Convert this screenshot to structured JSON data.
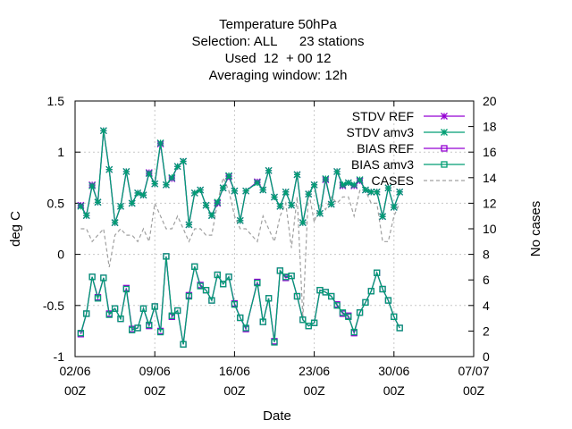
{
  "colors": {
    "stdv_ref": "#9400d3",
    "stdv_amv3": "#009e73",
    "bias_ref": "#9400d3",
    "bias_amv3": "#009e73",
    "cases": "#a0a0a0",
    "grid": "#c8c8c8"
  },
  "chart_data": {
    "type": "line",
    "title_lines": [
      "Temperature 50hPa",
      "Selection: ALL      23 stations",
      "Used  12  + 00 12",
      "Averaging window: 12h"
    ],
    "xlabel": "Date",
    "ylabel": "deg C",
    "y2label": "No cases",
    "xlim": [
      0,
      35
    ],
    "ylim": [
      -1,
      1.5
    ],
    "y2lim": [
      0,
      20
    ],
    "x_ticks": [
      {
        "x": 0,
        "line1": "02/06",
        "line2": "00Z"
      },
      {
        "x": 7,
        "line1": "09/06",
        "line2": "00Z"
      },
      {
        "x": 14,
        "line1": "16/06",
        "line2": "00Z"
      },
      {
        "x": 21,
        "line1": "23/06",
        "line2": "00Z"
      },
      {
        "x": 28,
        "line1": "30/06",
        "line2": "00Z"
      },
      {
        "x": 35,
        "line1": "07/07",
        "line2": "00Z"
      }
    ],
    "y_ticks": [
      {
        "v": -1,
        "label": "-1"
      },
      {
        "v": -0.5,
        "label": "-0.5"
      },
      {
        "v": 0,
        "label": "0"
      },
      {
        "v": 0.5,
        "label": "0.5"
      },
      {
        "v": 1,
        "label": "1"
      },
      {
        "v": 1.5,
        "label": "1.5"
      }
    ],
    "y2_ticks": [
      {
        "v": 0,
        "label": "0"
      },
      {
        "v": 2,
        "label": "2"
      },
      {
        "v": 4,
        "label": "4"
      },
      {
        "v": 6,
        "label": "6"
      },
      {
        "v": 8,
        "label": "8"
      },
      {
        "v": 10,
        "label": "10"
      },
      {
        "v": 12,
        "label": "12"
      },
      {
        "v": 14,
        "label": "14"
      },
      {
        "v": 16,
        "label": "16"
      },
      {
        "v": 18,
        "label": "18"
      },
      {
        "v": 20,
        "label": "20"
      }
    ],
    "grid": true,
    "legend_position": "top-right",
    "x": [
      0.5,
      1,
      1.5,
      2,
      2.5,
      3,
      3.5,
      4,
      4.5,
      5,
      5.5,
      6,
      6.5,
      7,
      7.5,
      8,
      8.5,
      9,
      9.5,
      10,
      10.5,
      11,
      11.5,
      12,
      12.5,
      13,
      13.5,
      14,
      14.5,
      15,
      16,
      16.5,
      17,
      17.5,
      18,
      18.5,
      19,
      19.5,
      20,
      20.5,
      21,
      21.5,
      22,
      22.5,
      23,
      23.5,
      24,
      24.5,
      25,
      25.5,
      26,
      26.5,
      27,
      27.5,
      28,
      28.5
    ],
    "series": [
      {
        "name": "STDV REF",
        "axis": "y",
        "marker": "star",
        "values": [
          0.48,
          0.38,
          0.68,
          0.51,
          1.21,
          0.83,
          0.31,
          0.47,
          0.81,
          0.5,
          0.6,
          0.58,
          0.8,
          0.69,
          1.08,
          0.68,
          0.74,
          0.86,
          0.91,
          0.29,
          0.6,
          0.63,
          0.48,
          0.38,
          0.5,
          0.65,
          0.76,
          0.62,
          0.33,
          0.62,
          0.71,
          0.63,
          0.82,
          0.56,
          0.47,
          0.61,
          0.48,
          0.78,
          0.31,
          0.59,
          0.68,
          0.4,
          0.73,
          0.49,
          0.81,
          0.67,
          0.7,
          0.67,
          0.72,
          0.63,
          0.61,
          0.61,
          0.37,
          0.65,
          0.46,
          0.61
        ]
      },
      {
        "name": "STDV amv3",
        "axis": "y",
        "marker": "star",
        "values": [
          0.47,
          0.38,
          0.67,
          0.51,
          1.21,
          0.83,
          0.31,
          0.47,
          0.81,
          0.5,
          0.6,
          0.58,
          0.79,
          0.69,
          1.09,
          0.68,
          0.75,
          0.86,
          0.91,
          0.29,
          0.6,
          0.63,
          0.48,
          0.38,
          0.51,
          0.65,
          0.77,
          0.62,
          0.33,
          0.62,
          0.7,
          0.63,
          0.82,
          0.56,
          0.47,
          0.61,
          0.48,
          0.78,
          0.31,
          0.59,
          0.68,
          0.4,
          0.74,
          0.49,
          0.81,
          0.68,
          0.7,
          0.68,
          0.73,
          0.63,
          0.61,
          0.61,
          0.37,
          0.65,
          0.46,
          0.61
        ]
      },
      {
        "name": "BIAS REF",
        "axis": "y",
        "marker": "square",
        "values": [
          -0.78,
          -0.58,
          -0.22,
          -0.42,
          -0.23,
          -0.58,
          -0.53,
          -0.63,
          -0.33,
          -0.73,
          -0.72,
          -0.53,
          -0.7,
          -0.51,
          -0.75,
          -0.02,
          -0.61,
          -0.55,
          -0.88,
          -0.4,
          -0.12,
          -0.3,
          -0.35,
          -0.45,
          -0.2,
          -0.29,
          -0.22,
          -0.48,
          -0.62,
          -0.73,
          -0.27,
          -0.66,
          -0.43,
          -0.85,
          -0.16,
          -0.23,
          -0.21,
          -0.41,
          -0.64,
          -0.7,
          -0.67,
          -0.35,
          -0.37,
          -0.41,
          -0.49,
          -0.58,
          -0.6,
          -0.77,
          -0.57,
          -0.47,
          -0.36,
          -0.18,
          -0.34,
          -0.45,
          -0.61,
          -0.72
        ]
      },
      {
        "name": "BIAS amv3",
        "axis": "y",
        "marker": "square",
        "values": [
          -0.77,
          -0.58,
          -0.22,
          -0.43,
          -0.23,
          -0.59,
          -0.53,
          -0.63,
          -0.34,
          -0.74,
          -0.72,
          -0.53,
          -0.69,
          -0.51,
          -0.76,
          -0.02,
          -0.6,
          -0.55,
          -0.88,
          -0.41,
          -0.12,
          -0.31,
          -0.35,
          -0.45,
          -0.2,
          -0.29,
          -0.22,
          -0.49,
          -0.62,
          -0.72,
          -0.28,
          -0.66,
          -0.43,
          -0.86,
          -0.16,
          -0.22,
          -0.21,
          -0.41,
          -0.64,
          -0.7,
          -0.67,
          -0.35,
          -0.37,
          -0.41,
          -0.5,
          -0.57,
          -0.61,
          -0.76,
          -0.57,
          -0.47,
          -0.36,
          -0.18,
          -0.34,
          -0.45,
          -0.61,
          -0.72
        ]
      },
      {
        "name": "CASES",
        "axis": "y2",
        "marker": "none",
        "values": [
          10,
          10,
          9,
          9.5,
          10,
          7,
          9.5,
          10,
          9.5,
          9.5,
          9,
          10,
          9,
          12,
          11,
          10,
          10,
          11,
          10,
          9,
          10,
          10,
          9.5,
          9.5,
          12,
          14,
          13,
          11,
          10,
          10,
          9,
          11,
          10,
          9,
          11,
          12,
          8.5,
          12.5,
          3,
          13,
          10.5,
          12,
          11.5,
          12.5,
          12,
          12.5,
          12.5,
          11,
          13,
          13,
          12,
          12,
          9,
          9,
          11,
          12
        ]
      }
    ]
  }
}
